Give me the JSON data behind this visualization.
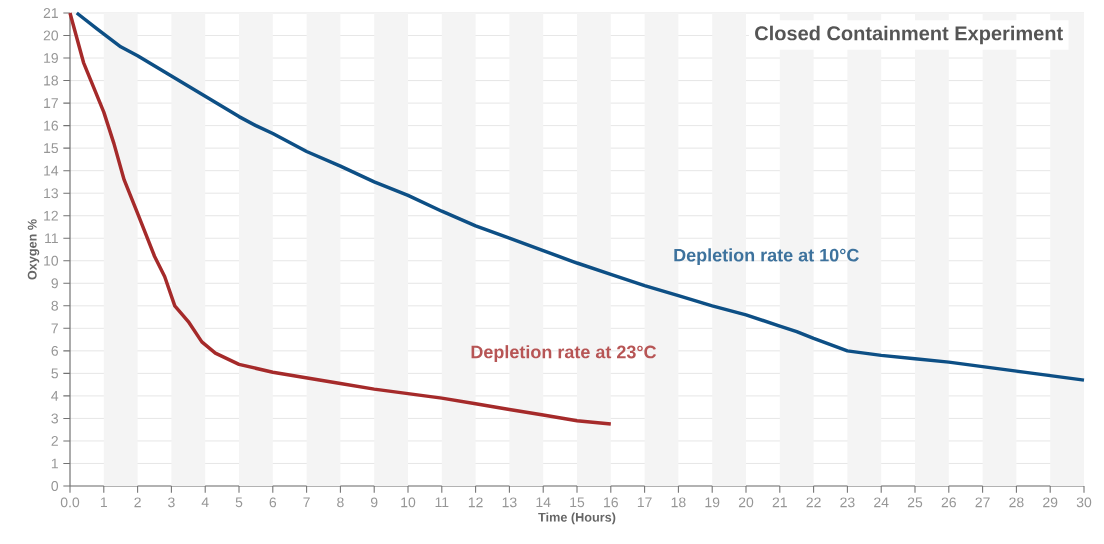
{
  "chart_data": {
    "type": "line",
    "title": "Closed Containment Experiment",
    "xlabel": "Time (Hours)",
    "ylabel": "Oxygen %",
    "series": [
      {
        "name": "Depletion rate at 10°C",
        "color": "#0d4f85",
        "x": [
          0.2,
          0.8,
          1.5,
          2,
          3,
          4,
          5,
          5.5,
          6,
          7,
          8,
          9,
          10,
          11,
          12,
          13,
          14,
          15,
          16,
          17,
          18,
          19,
          20,
          21,
          21.5,
          22,
          23,
          24,
          25,
          26,
          27,
          28,
          29,
          30
        ],
        "values": [
          21,
          20.3,
          19.5,
          19.1,
          18.2,
          17.3,
          16.4,
          16.0,
          15.65,
          14.85,
          14.2,
          13.5,
          12.9,
          12.2,
          11.55,
          11.0,
          10.45,
          9.9,
          9.4,
          8.9,
          8.45,
          8.0,
          7.6,
          7.1,
          6.85,
          6.55,
          6.0,
          5.8,
          5.65,
          5.5,
          5.3,
          5.1,
          4.9,
          4.7
        ]
      },
      {
        "name": "Depletion rate at 23°C",
        "color": "#a52a2a",
        "x": [
          0,
          0.4,
          1,
          1.3,
          1.6,
          2,
          2.5,
          2.8,
          3.1,
          3.5,
          3.9,
          4.3,
          5,
          6,
          7,
          8,
          9,
          10,
          11,
          12,
          13,
          14,
          15,
          16
        ],
        "values": [
          21,
          18.8,
          16.6,
          15.2,
          13.6,
          12.1,
          10.2,
          9.3,
          8.0,
          7.3,
          6.4,
          5.9,
          5.4,
          5.05,
          4.8,
          4.55,
          4.3,
          4.1,
          3.9,
          3.65,
          3.4,
          3.15,
          2.9,
          2.75
        ]
      }
    ],
    "xlim": [
      0,
      30
    ],
    "ylim": [
      0,
      21
    ],
    "xticks": [
      {
        "value": 0,
        "label": "0.0"
      },
      1,
      2,
      3,
      4,
      5,
      6,
      7,
      8,
      9,
      10,
      11,
      12,
      13,
      14,
      15,
      16,
      17,
      18,
      19,
      20,
      21,
      22,
      23,
      24,
      25,
      26,
      27,
      28,
      29,
      30
    ],
    "yticks": [
      0,
      1,
      2,
      3,
      4,
      5,
      6,
      7,
      8,
      9,
      10,
      11,
      12,
      13,
      14,
      15,
      16,
      17,
      18,
      19,
      20,
      21
    ],
    "bands": [
      {
        "axis": "x",
        "from": 1,
        "to": 2,
        "color": "#f4f4f4"
      },
      {
        "axis": "x",
        "from": 3,
        "to": 4,
        "color": "#f4f4f4"
      },
      {
        "axis": "x",
        "from": 5,
        "to": 6,
        "color": "#f4f4f4"
      },
      {
        "axis": "x",
        "from": 7,
        "to": 8,
        "color": "#f4f4f4"
      },
      {
        "axis": "x",
        "from": 9,
        "to": 10,
        "color": "#f4f4f4"
      },
      {
        "axis": "x",
        "from": 11,
        "to": 12,
        "color": "#f4f4f4"
      },
      {
        "axis": "x",
        "from": 13,
        "to": 14,
        "color": "#f4f4f4"
      },
      {
        "axis": "x",
        "from": 15,
        "to": 16,
        "color": "#f4f4f4"
      },
      {
        "axis": "x",
        "from": 17,
        "to": 18,
        "color": "#f4f4f4"
      },
      {
        "axis": "x",
        "from": 19,
        "to": 20,
        "color": "#f4f4f4"
      },
      {
        "axis": "x",
        "from": 21,
        "to": 22,
        "color": "#f4f4f4"
      },
      {
        "axis": "x",
        "from": 23,
        "to": 24,
        "color": "#f4f4f4"
      },
      {
        "axis": "x",
        "from": 25,
        "to": 26,
        "color": "#f4f4f4"
      },
      {
        "axis": "x",
        "from": 27,
        "to": 28,
        "color": "#f4f4f4"
      },
      {
        "axis": "x",
        "from": 29,
        "to": 30,
        "color": "#f4f4f4"
      }
    ],
    "grid": "y",
    "legend": false,
    "marker": "none",
    "line_style": "solid"
  }
}
